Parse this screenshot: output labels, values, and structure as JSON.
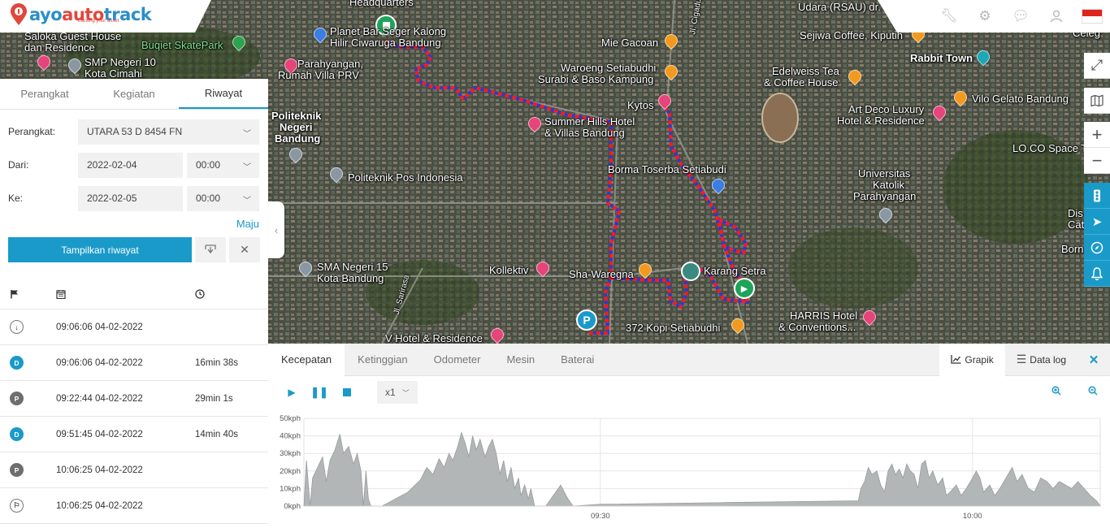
{
  "app": {
    "logo_text": "ayo auto track",
    "logo_tagline": "tracking your asset",
    "top_icons": [
      "wrench-icon",
      "gear-icon",
      "chat-icon",
      "user-icon",
      "indonesia-flag-icon"
    ],
    "colors": {
      "accent": "#1a9ac9",
      "route_red": "#ff1a1a",
      "route_blue": "#1f3fd6"
    }
  },
  "map": {
    "labels": [
      "Headquarters",
      "Planet Bar Seger Kalong",
      "Hilir Ciwaruga Bandung",
      "Saloka Guest House",
      "dan Residence",
      "Buqiet SkatePark",
      "SMP Negeri 10",
      "Kota Cimahi",
      "Parahyangan,",
      "Rumah Villa PRV",
      "Mie Gacoan",
      "Waroeng Setiabudhi",
      "Surabi & Baso Kampung",
      "Sejiwa Coffee, Kiputih",
      "Rabbit Town",
      "Edelweiss Tea",
      "& Coffee House",
      "Vilo Gelato Bandung",
      "Art Deco Luxury",
      "Hotel & Residence",
      "Kytos",
      "Politeknik",
      "Negeri",
      "Bandung",
      "Summer Hills Hotel",
      "& Villas Bandung",
      "Borma Toserba Setiabudi",
      "LO.CO Space T",
      "Universitas",
      "Katolik",
      "Parahyangan",
      "Politeknik Pos Indonesia",
      "SMA Negeri 15",
      "Kota Bandung",
      "Kollektiv",
      "Sha-Waregna",
      "Karang Setra",
      "HARRIS Hotel",
      "& Conventions...",
      "372 Kopi Setiabudhi",
      "V Hotel & Residence",
      "Udara (RSAU) dr.",
      "Jl. Sarirasa",
      "Jl. Cigadung",
      "Dis",
      "Cat",
      "Born",
      "Celeg"
    ],
    "controls": [
      "fullscreen-icon",
      "map-layers-icon",
      "zoom-in-icon",
      "zoom-out-icon"
    ],
    "side_tools": [
      "traffic-light-icon",
      "navigation-icon",
      "compass-icon",
      "bell-icon"
    ]
  },
  "panel": {
    "tabs": [
      "Perangkat",
      "Kegiatan",
      "Riwayat"
    ],
    "active_tab": "Riwayat",
    "device_label": "Perangkat:",
    "device_value": "UTARA 53 D 8454 FN",
    "from_label": "Dari:",
    "from_date": "2022-02-04",
    "from_time": "00:00",
    "to_label": "Ke:",
    "to_date": "2022-02-05",
    "to_time": "00:00",
    "advanced_link": "Maju",
    "show_button": "Tampilkan riwayat",
    "history_columns": [
      "flag-icon",
      "calendar-icon",
      "clock-icon"
    ],
    "history": [
      {
        "type": "start",
        "icon": "arrow-down-icon",
        "time": "09:06:06 04-02-2022",
        "duration": ""
      },
      {
        "type": "D",
        "time": "09:06:06 04-02-2022",
        "duration": "16min 38s"
      },
      {
        "type": "P",
        "time": "09:22:44 04-02-2022",
        "duration": "29min 1s"
      },
      {
        "type": "D",
        "time": "09:51:45 04-02-2022",
        "duration": "14min 40s"
      },
      {
        "type": "P",
        "time": "10:06:25 04-02-2022",
        "duration": ""
      },
      {
        "type": "end",
        "icon": "finish-flag-icon",
        "time": "10:06:25 04-02-2022",
        "duration": ""
      }
    ]
  },
  "bottom": {
    "tabs": [
      "Kecepatan",
      "Ketinggian",
      "Odometer",
      "Mesin",
      "Baterai"
    ],
    "active_tab": "Kecepatan",
    "view_graph": "Grapik",
    "view_data": "Data log",
    "speed_value": "x1"
  },
  "chart_data": {
    "type": "area",
    "title": "",
    "ylabel": "",
    "xlabel": "",
    "unit": "kph",
    "ylim": [
      0,
      50
    ],
    "yticks": [
      "0kph",
      "10kph",
      "20kph",
      "30kph",
      "40kph",
      "50kph"
    ],
    "xticks": [
      {
        "label": "09:30",
        "t": 30
      },
      {
        "label": "10:00",
        "t": 60
      }
    ],
    "xrange_minutes_after_0900": [
      6.1,
      70.3
    ],
    "grid": true,
    "series": [
      {
        "fill": "#b3b6b6",
        "points": [
          [
            6.1,
            0
          ],
          [
            6.3,
            26
          ],
          [
            6.6,
            0
          ],
          [
            6.8,
            16
          ],
          [
            7.2,
            22
          ],
          [
            7.6,
            28
          ],
          [
            7.9,
            14
          ],
          [
            8.2,
            26
          ],
          [
            8.6,
            32
          ],
          [
            9.0,
            41
          ],
          [
            9.3,
            30
          ],
          [
            9.7,
            34
          ],
          [
            10.1,
            24
          ],
          [
            10.4,
            30
          ],
          [
            10.7,
            20
          ],
          [
            10.9,
            0
          ],
          [
            11.1,
            20
          ],
          [
            11.3,
            4
          ],
          [
            11.5,
            0
          ],
          [
            12.4,
            0
          ],
          [
            14.5,
            8
          ],
          [
            15.5,
            15
          ],
          [
            16.0,
            22
          ],
          [
            16.5,
            18
          ],
          [
            17.0,
            27
          ],
          [
            17.4,
            22
          ],
          [
            17.8,
            30
          ],
          [
            18.1,
            26
          ],
          [
            18.5,
            34
          ],
          [
            18.8,
            42
          ],
          [
            19.1,
            36
          ],
          [
            19.4,
            28
          ],
          [
            19.7,
            40
          ],
          [
            20.0,
            32
          ],
          [
            20.3,
            38
          ],
          [
            20.7,
            28
          ],
          [
            21.0,
            34
          ],
          [
            21.3,
            38
          ],
          [
            21.6,
            30
          ],
          [
            21.9,
            18
          ],
          [
            22.2,
            26
          ],
          [
            22.5,
            14
          ],
          [
            22.8,
            22
          ],
          [
            23.1,
            10
          ],
          [
            23.4,
            16
          ],
          [
            23.6,
            6
          ],
          [
            23.9,
            12
          ],
          [
            24.2,
            4
          ],
          [
            24.4,
            10
          ],
          [
            24.7,
            0
          ],
          [
            25.6,
            0
          ],
          [
            26.8,
            12
          ],
          [
            27.4,
            4
          ],
          [
            27.8,
            0
          ],
          [
            30,
            1
          ],
          [
            40,
            2
          ],
          [
            50.8,
            3
          ],
          [
            51.0,
            10
          ],
          [
            51.3,
            14
          ],
          [
            51.6,
            22
          ],
          [
            51.9,
            18
          ],
          [
            52.3,
            20
          ],
          [
            52.6,
            12
          ],
          [
            52.9,
            8
          ],
          [
            53.2,
            20
          ],
          [
            53.5,
            24
          ],
          [
            53.8,
            18
          ],
          [
            54.1,
            21
          ],
          [
            54.4,
            16
          ],
          [
            54.7,
            24
          ],
          [
            55.0,
            20
          ],
          [
            55.3,
            18
          ],
          [
            55.6,
            10
          ],
          [
            55.9,
            24
          ],
          [
            56.2,
            26
          ],
          [
            56.5,
            16
          ],
          [
            56.8,
            20
          ],
          [
            57.2,
            12
          ],
          [
            57.6,
            16
          ],
          [
            57.9,
            6
          ],
          [
            58.2,
            8
          ],
          [
            58.7,
            12
          ],
          [
            59.1,
            6
          ],
          [
            59.5,
            10
          ],
          [
            60.0,
            16
          ],
          [
            60.3,
            20
          ],
          [
            60.6,
            16
          ],
          [
            60.9,
            8
          ],
          [
            61.4,
            12
          ],
          [
            61.8,
            6
          ],
          [
            62.2,
            10
          ],
          [
            62.7,
            16
          ],
          [
            63.2,
            22
          ],
          [
            63.6,
            14
          ],
          [
            64.0,
            18
          ],
          [
            64.5,
            10
          ],
          [
            65.0,
            8
          ],
          [
            65.5,
            16
          ],
          [
            66.0,
            14
          ],
          [
            66.5,
            10
          ],
          [
            67.0,
            14
          ],
          [
            67.5,
            12
          ],
          [
            68.0,
            10
          ],
          [
            68.5,
            14
          ],
          [
            69.0,
            10
          ],
          [
            69.5,
            6
          ],
          [
            70.0,
            3
          ],
          [
            70.3,
            0
          ]
        ]
      }
    ]
  }
}
